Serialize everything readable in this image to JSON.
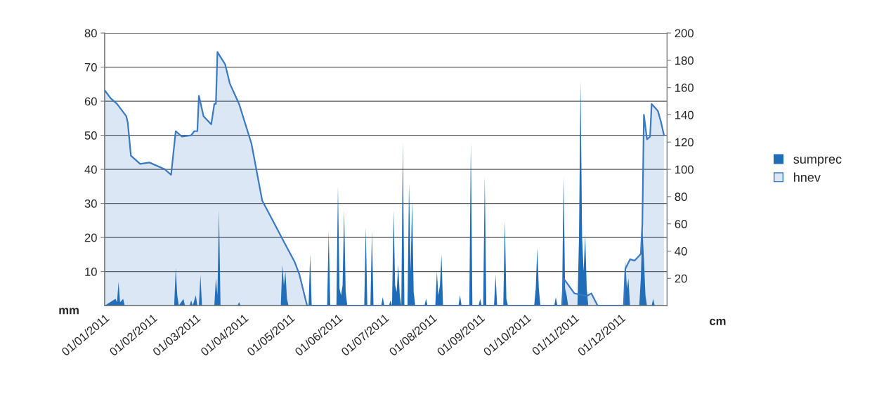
{
  "chart_data": {
    "type": "area",
    "ylabel": "mm",
    "y2label": "cm",
    "xlim": [
      "2011-01-01",
      "2011-12-31"
    ],
    "xticks": [
      {
        "value": "2011-01-01",
        "label": "01/01/2011"
      },
      {
        "value": "2011-02-01",
        "label": "01/02/2011"
      },
      {
        "value": "2011-03-01",
        "label": "01/03/2011"
      },
      {
        "value": "2011-04-01",
        "label": "01/04/2011"
      },
      {
        "value": "2011-05-01",
        "label": "01/05/2011"
      },
      {
        "value": "2011-06-01",
        "label": "01/06/2011"
      },
      {
        "value": "2011-07-01",
        "label": "01/07/2011"
      },
      {
        "value": "2011-08-01",
        "label": "01/08/2011"
      },
      {
        "value": "2011-09-01",
        "label": "01/09/2011"
      },
      {
        "value": "2011-10-01",
        "label": "01/10/2011"
      },
      {
        "value": "2011-11-01",
        "label": "01/11/2011"
      },
      {
        "value": "2011-12-01",
        "label": "01/12/2011"
      }
    ],
    "ylim": [
      0,
      80
    ],
    "yticks": [
      10,
      20,
      30,
      40,
      50,
      60,
      70,
      80
    ],
    "y2lim": [
      0,
      200
    ],
    "y2ticks": [
      20,
      40,
      60,
      80,
      100,
      120,
      140,
      160,
      180,
      200
    ],
    "grid": "y",
    "legend": "right",
    "series": [
      {
        "name": "sumprec",
        "color": "#1f6cb8",
        "x": [
          "2011-01-01",
          "2011-01-08",
          "2011-01-09",
          "2011-01-10",
          "2011-01-11",
          "2011-01-13",
          "2011-01-14",
          "2011-02-15",
          "2011-02-16",
          "2011-02-17",
          "2011-02-18",
          "2011-02-21",
          "2011-02-22",
          "2011-02-25",
          "2011-02-26",
          "2011-02-27",
          "2011-03-01",
          "2011-03-02",
          "2011-03-03",
          "2011-03-04",
          "2011-03-05",
          "2011-03-13",
          "2011-03-14",
          "2011-03-15",
          "2011-03-16",
          "2011-03-17",
          "2011-03-28",
          "2011-03-29",
          "2011-03-30",
          "2011-04-25",
          "2011-04-26",
          "2011-04-27",
          "2011-04-28",
          "2011-04-29",
          "2011-04-30",
          "2011-05-13",
          "2011-05-14",
          "2011-05-15",
          "2011-05-25",
          "2011-05-26",
          "2011-05-27",
          "2011-05-31",
          "2011-06-01",
          "2011-06-02",
          "2011-06-03",
          "2011-06-04",
          "2011-06-05",
          "2011-06-06",
          "2011-06-07",
          "2011-06-18",
          "2011-06-19",
          "2011-06-20",
          "2011-06-22",
          "2011-06-23",
          "2011-06-24",
          "2011-06-29",
          "2011-06-30",
          "2011-07-01",
          "2011-07-04",
          "2011-07-05",
          "2011-07-06",
          "2011-07-07",
          "2011-07-08",
          "2011-07-09",
          "2011-07-10",
          "2011-07-11",
          "2011-07-12",
          "2011-07-13",
          "2011-07-14",
          "2011-07-16",
          "2011-07-17",
          "2011-07-18",
          "2011-07-19",
          "2011-07-20",
          "2011-07-21",
          "2011-07-27",
          "2011-07-28",
          "2011-07-29",
          "2011-08-03",
          "2011-08-04",
          "2011-08-05",
          "2011-08-06",
          "2011-08-07",
          "2011-08-08",
          "2011-08-18",
          "2011-08-19",
          "2011-08-20",
          "2011-08-25",
          "2011-08-26",
          "2011-08-27",
          "2011-08-31",
          "2011-09-01",
          "2011-09-02",
          "2011-09-03",
          "2011-09-04",
          "2011-09-05",
          "2011-09-10",
          "2011-09-11",
          "2011-09-12",
          "2011-09-16",
          "2011-09-17",
          "2011-09-18",
          "2011-09-19",
          "2011-10-06",
          "2011-10-07",
          "2011-10-08",
          "2011-10-09",
          "2011-10-10",
          "2011-10-19",
          "2011-10-20",
          "2011-10-21",
          "2011-10-24",
          "2011-10-25",
          "2011-10-26",
          "2011-10-27",
          "2011-10-28",
          "2011-11-03",
          "2011-11-04",
          "2011-11-05",
          "2011-11-06",
          "2011-11-07",
          "2011-11-08",
          "2011-11-09",
          "2011-11-10",
          "2011-12-03",
          "2011-12-04",
          "2011-12-05",
          "2011-12-06",
          "2011-12-07",
          "2011-12-13",
          "2011-12-14",
          "2011-12-15",
          "2011-12-16",
          "2011-12-17",
          "2011-12-18",
          "2011-12-21",
          "2011-12-22",
          "2011-12-23",
          "2011-12-31"
        ],
        "values": [
          0,
          2,
          1,
          7,
          1,
          2,
          0,
          0,
          11,
          3,
          0,
          2,
          0,
          0,
          1.5,
          0,
          3,
          0,
          0,
          9,
          0,
          0,
          8,
          3,
          28,
          0,
          0,
          1,
          0,
          0,
          12,
          6,
          10,
          2,
          0,
          0,
          15,
          0,
          0,
          22,
          0,
          0,
          35,
          5,
          3,
          6,
          28,
          4,
          0,
          0,
          23,
          0,
          0,
          22,
          0,
          0,
          2.5,
          0,
          0,
          1.5,
          0,
          28,
          6,
          4,
          12,
          3,
          0,
          48,
          0,
          0,
          36,
          10,
          31,
          4,
          0,
          0,
          2,
          0,
          0,
          10,
          3,
          6,
          15,
          0,
          0,
          3,
          0,
          0,
          48,
          0,
          0,
          2,
          0,
          0,
          38,
          0,
          0,
          9,
          0,
          0,
          25,
          2,
          0,
          0,
          5,
          17,
          5,
          0,
          0,
          2.5,
          0,
          0,
          38,
          5,
          3,
          0,
          0,
          20,
          66,
          20,
          10,
          21,
          5,
          0,
          0,
          13,
          5,
          8,
          0,
          0,
          8,
          23,
          14,
          3,
          0,
          0,
          2,
          0,
          0
        ]
      },
      {
        "name": "hnev",
        "color": "#3a7ac4",
        "axis": "y2",
        "x": [
          "2011-01-01",
          "2011-01-05",
          "2011-01-09",
          "2011-01-15",
          "2011-01-16",
          "2011-01-18",
          "2011-01-24",
          "2011-01-30",
          "2011-02-09",
          "2011-02-13",
          "2011-02-16",
          "2011-02-20",
          "2011-02-26",
          "2011-02-28",
          "2011-03-02",
          "2011-03-03",
          "2011-03-06",
          "2011-03-11",
          "2011-03-13",
          "2011-03-14",
          "2011-03-15",
          "2011-03-20",
          "2011-03-23",
          "2011-03-29",
          "2011-04-06",
          "2011-04-13",
          "2011-04-20",
          "2011-04-26",
          "2011-05-04",
          "2011-05-07",
          "2011-05-12",
          "2011-10-24",
          "2011-10-25",
          "2011-11-01",
          "2011-11-09",
          "2011-11-12",
          "2011-11-16",
          "2011-12-03",
          "2011-12-04",
          "2011-12-07",
          "2011-12-10",
          "2011-12-14",
          "2011-12-15",
          "2011-12-16",
          "2011-12-18",
          "2011-12-20",
          "2011-12-21",
          "2011-12-25",
          "2011-12-27",
          "2011-12-29"
        ],
        "values": [
          158,
          152,
          148,
          139,
          134,
          110,
          104,
          105,
          100,
          96,
          128,
          124,
          125,
          128,
          128,
          154,
          139,
          133,
          148,
          148,
          186,
          177,
          163,
          148,
          119,
          77,
          62,
          49,
          32,
          23,
          0,
          0,
          20,
          9,
          7,
          9,
          0,
          0,
          27,
          34,
          33,
          38,
          60,
          140,
          122,
          124,
          148,
          143,
          135,
          125
        ]
      }
    ]
  }
}
